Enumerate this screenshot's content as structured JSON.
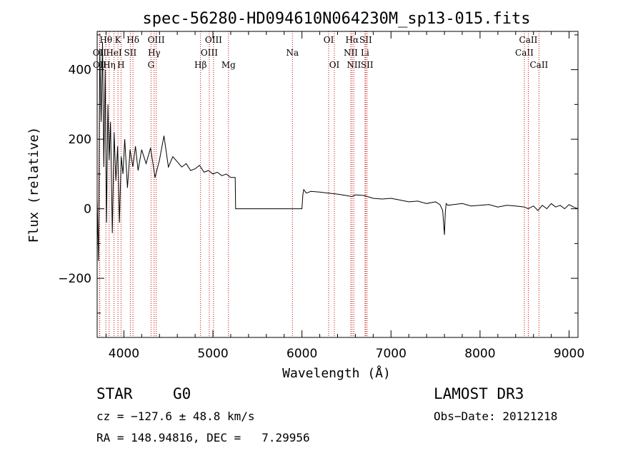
{
  "chart_data": {
    "type": "line",
    "title": "spec-56280-HD094610N064230M_sp13-015.fits",
    "xlabel": "Wavelength (Å)",
    "ylabel": "Flux (relative)",
    "xlim": [
      3700,
      9100
    ],
    "ylim": [
      -370,
      510
    ],
    "x_ticks": [
      4000,
      5000,
      6000,
      7000,
      8000,
      9000
    ],
    "y_ticks": [
      -200,
      0,
      200,
      400
    ],
    "series": [
      {
        "name": "flux",
        "x": [
          3700,
          3715,
          3730,
          3745,
          3760,
          3775,
          3790,
          3805,
          3820,
          3835,
          3850,
          3870,
          3890,
          3910,
          3930,
          3950,
          3970,
          3990,
          4010,
          4040,
          4070,
          4100,
          4130,
          4160,
          4200,
          4250,
          4300,
          4350,
          4400,
          4450,
          4500,
          4550,
          4600,
          4650,
          4700,
          4750,
          4800,
          4850,
          4900,
          4950,
          5000,
          5050,
          5100,
          5150,
          5200,
          5250,
          5255,
          5300,
          5500,
          5800,
          6000,
          6010,
          6020,
          6050,
          6100,
          6200,
          6300,
          6400,
          6500,
          6560,
          6600,
          6700,
          6800,
          6900,
          7000,
          7100,
          7200,
          7300,
          7400,
          7500,
          7550,
          7580,
          7600,
          7610,
          7620,
          7640,
          7700,
          7800,
          7900,
          8000,
          8100,
          8200,
          8300,
          8400,
          8500,
          8540,
          8600,
          8650,
          8700,
          8750,
          8800,
          8850,
          8900,
          8950,
          9000,
          9050,
          9100
        ],
        "values": [
          30,
          -150,
          460,
          250,
          480,
          120,
          400,
          -40,
          300,
          140,
          250,
          -70,
          220,
          80,
          180,
          -40,
          150,
          100,
          200,
          60,
          170,
          120,
          180,
          110,
          170,
          130,
          175,
          90,
          140,
          210,
          120,
          150,
          135,
          120,
          130,
          110,
          115,
          125,
          105,
          110,
          100,
          105,
          95,
          100,
          90,
          90,
          0,
          0,
          0,
          0,
          0,
          40,
          55,
          45,
          50,
          48,
          45,
          42,
          38,
          35,
          40,
          38,
          30,
          28,
          30,
          25,
          20,
          22,
          15,
          20,
          12,
          -5,
          -75,
          -10,
          15,
          10,
          12,
          15,
          8,
          10,
          12,
          5,
          10,
          8,
          5,
          0,
          8,
          -5,
          10,
          0,
          15,
          5,
          10,
          0,
          12,
          5,
          0
        ]
      }
    ],
    "lines": [
      {
        "name": "Hα",
        "x": 6563,
        "row": 0
      },
      {
        "name": "SII",
        "x": 6716,
        "row": 0
      },
      {
        "name": "SII",
        "x": 6731,
        "row": 2
      },
      {
        "name": "NII",
        "x": 6548,
        "row": 1
      },
      {
        "name": "NII",
        "x": 6583,
        "row": 2
      },
      {
        "name": "Li",
        "x": 6708,
        "row": 1
      },
      {
        "name": "OI",
        "x": 6300,
        "row": 0
      },
      {
        "name": "OI",
        "x": 6364,
        "row": 2
      },
      {
        "name": "Na",
        "x": 5893,
        "row": 1
      },
      {
        "name": "Mg",
        "x": 5175,
        "row": 2
      },
      {
        "name": "OIII",
        "x": 5007,
        "row": 0
      },
      {
        "name": "OIII",
        "x": 4959,
        "row": 1
      },
      {
        "name": "Hβ",
        "x": 4861,
        "row": 2
      },
      {
        "name": "OIII",
        "x": 4363,
        "row": 0
      },
      {
        "name": "Hγ",
        "x": 4340,
        "row": 1
      },
      {
        "name": "G",
        "x": 4305,
        "row": 2
      },
      {
        "name": "Hδ",
        "x": 4102,
        "row": 0
      },
      {
        "name": "SII",
        "x": 4072,
        "row": 1
      },
      {
        "name": "H",
        "x": 3968,
        "row": 2
      },
      {
        "name": "K",
        "x": 3934,
        "row": 0
      },
      {
        "name": "HeI",
        "x": 3889,
        "row": 1
      },
      {
        "name": "Hη",
        "x": 3835,
        "row": 2
      },
      {
        "name": "Hθ",
        "x": 3798,
        "row": 0
      },
      {
        "name": "OII",
        "x": 3727,
        "row": 1
      },
      {
        "name": "OII",
        "x": 3729,
        "row": 2
      },
      {
        "name": "CaII",
        "x": 8498,
        "row": 1
      },
      {
        "name": "CaII",
        "x": 8542,
        "row": 0
      },
      {
        "name": "CaII",
        "x": 8662,
        "row": 2
      }
    ],
    "line_color": "#cc0000"
  },
  "info": {
    "class": "STAR",
    "subclass": "G0",
    "survey": "LAMOST DR3",
    "cz": "cz = −127.6 ± 48.8 km/s",
    "obs_date": "Obs−Date: 20121218",
    "radec": "RA = 148.94816, DEC =   7.29956"
  }
}
